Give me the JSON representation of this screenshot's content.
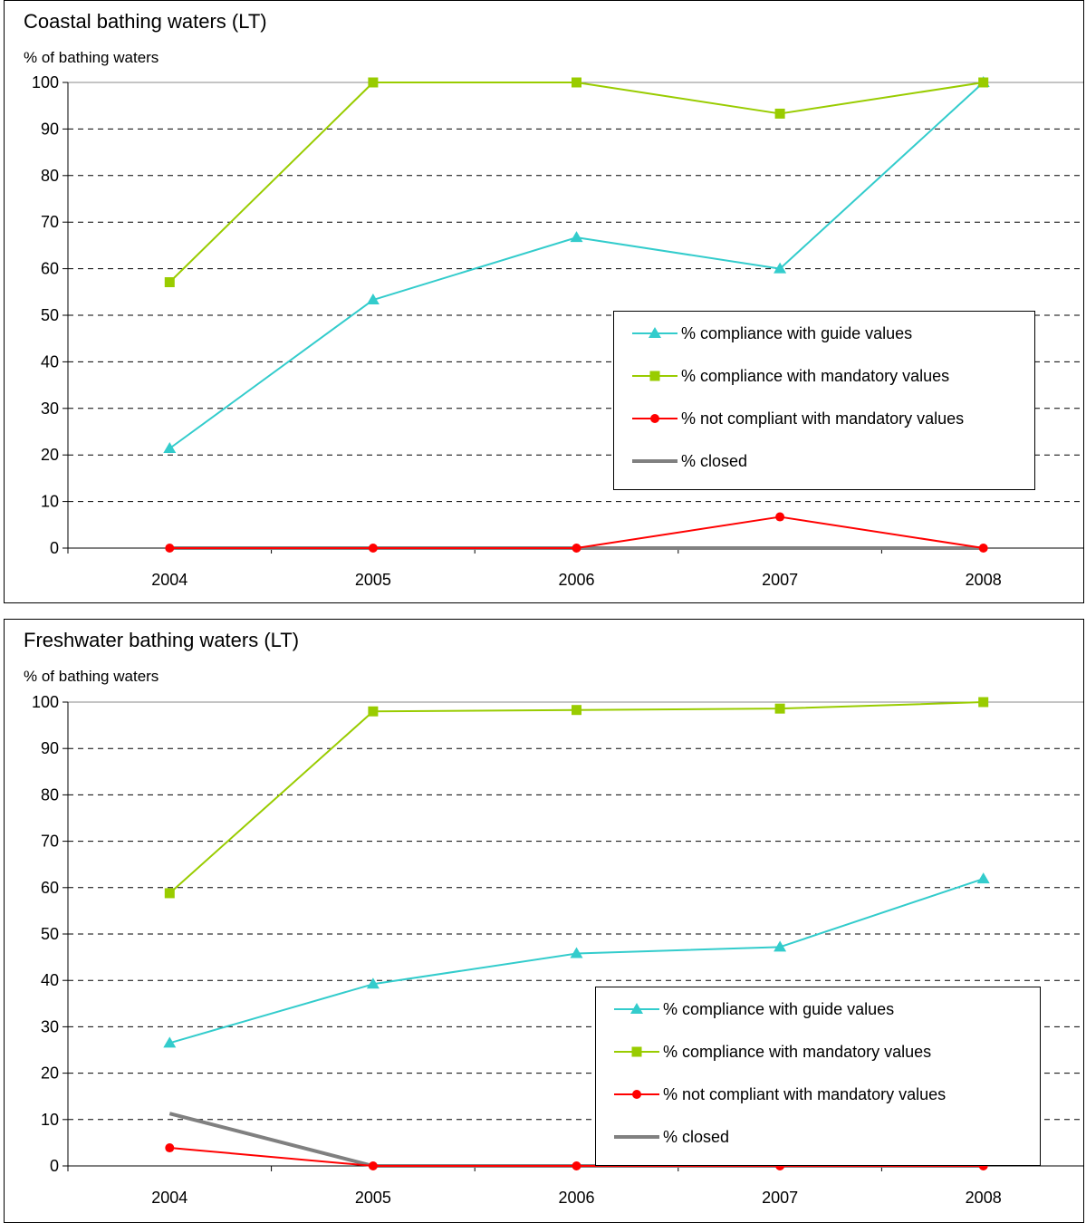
{
  "chart_data": [
    {
      "type": "line",
      "title": "Coastal bathing waters (LT)",
      "ylabel": "% of bathing waters",
      "xlabel": "",
      "categories": [
        "2004",
        "2005",
        "2006",
        "2007",
        "2008"
      ],
      "ylim": [
        0,
        100
      ],
      "yticks": [
        "0",
        "10",
        "20",
        "30",
        "40",
        "50",
        "60",
        "70",
        "80",
        "90",
        "100"
      ],
      "grid": "horizontal dashed",
      "legend_position": "inside-right",
      "series": [
        {
          "name": "% compliance with guide values",
          "values": [
            21.4,
            53.3,
            66.7,
            60.0,
            100
          ],
          "color": "#33CCCC",
          "marker": "triangle"
        },
        {
          "name": "% compliance with mandatory values",
          "values": [
            57.1,
            100,
            100,
            93.3,
            100
          ],
          "color": "#99CC00",
          "marker": "square"
        },
        {
          "name": "% not compliant with mandatory values",
          "values": [
            0,
            0,
            0,
            6.7,
            0
          ],
          "color": "#FF0000",
          "marker": "circle"
        },
        {
          "name": "% closed",
          "values": [
            0,
            0,
            0,
            0,
            0
          ],
          "color": "#808080",
          "marker": "none"
        }
      ]
    },
    {
      "type": "line",
      "title": "Freshwater bathing waters (LT)",
      "ylabel": "% of bathing waters",
      "xlabel": "",
      "categories": [
        "2004",
        "2005",
        "2006",
        "2007",
        "2008"
      ],
      "ylim": [
        0,
        100
      ],
      "yticks": [
        "0",
        "10",
        "20",
        "30",
        "40",
        "50",
        "60",
        "70",
        "80",
        "90",
        "100"
      ],
      "grid": "horizontal dashed",
      "legend_position": "inside-right",
      "series": [
        {
          "name": "% compliance with guide values",
          "values": [
            26.5,
            39.2,
            45.8,
            47.2,
            61.9
          ],
          "color": "#33CCCC",
          "marker": "triangle"
        },
        {
          "name": "% compliance with mandatory values",
          "values": [
            58.8,
            98.0,
            98.3,
            98.6,
            100
          ],
          "color": "#99CC00",
          "marker": "square"
        },
        {
          "name": "% not compliant with mandatory values",
          "values": [
            3.9,
            0,
            0,
            0,
            0
          ],
          "color": "#FF0000",
          "marker": "circle"
        },
        {
          "name": "% closed",
          "values": [
            11.3,
            0,
            0,
            0,
            0
          ],
          "color": "#808080",
          "marker": "none"
        }
      ]
    }
  ]
}
